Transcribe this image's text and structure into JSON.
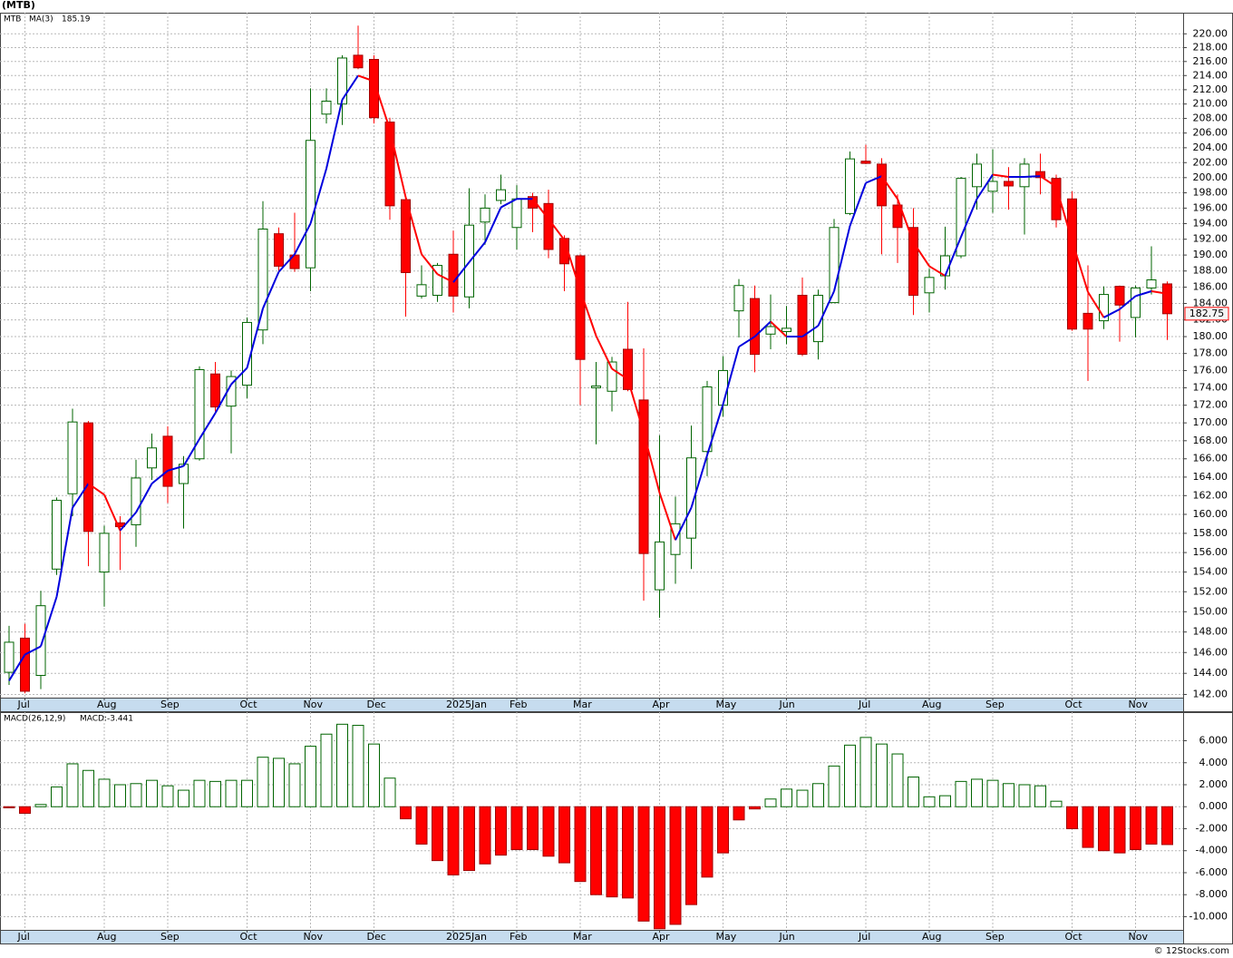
{
  "chart_data": [
    {
      "type": "candlestick",
      "title": "(MTB)",
      "symbol": "MTB",
      "log": true,
      "grid": true,
      "color_up": "#006400",
      "color_down": "#ff0000",
      "categories": [
        null,
        "Jul",
        null,
        null,
        null,
        null,
        "Aug",
        null,
        null,
        null,
        "Sep",
        null,
        null,
        null,
        null,
        "Oct",
        null,
        null,
        null,
        "Nov",
        null,
        null,
        null,
        "Dec",
        null,
        null,
        null,
        null,
        "2025Jan",
        null,
        null,
        null,
        "Feb",
        null,
        null,
        null,
        "Mar",
        null,
        null,
        null,
        null,
        "Apr",
        null,
        null,
        null,
        "May",
        null,
        null,
        null,
        "Jun",
        null,
        null,
        null,
        null,
        "Jul",
        null,
        null,
        null,
        "Aug",
        null,
        null,
        null,
        "Sep",
        null,
        null,
        null,
        null,
        "Oct",
        null,
        null,
        null,
        "Nov",
        null,
        null
      ],
      "open": [
        144.1,
        147.4,
        143.8,
        154.3,
        162.2,
        170.0,
        154.0,
        159.1,
        158.9,
        165.0,
        168.5,
        163.3,
        166.0,
        175.6,
        171.9,
        174.3,
        180.8,
        192.7,
        190.0,
        188.4,
        208.6,
        210.0,
        216.9,
        216.3,
        207.5,
        197.1,
        184.9,
        185.0,
        190.1,
        184.8,
        194.2,
        197.0,
        193.5,
        197.5,
        196.6,
        192.1,
        189.9,
        174.0,
        173.6,
        178.5,
        172.6,
        152.2,
        155.8,
        157.5,
        166.8,
        172.0,
        183.1,
        184.6,
        180.3,
        180.6,
        185.0,
        179.4,
        184.1,
        195.3,
        202.2,
        201.8,
        196.4,
        193.5,
        185.3,
        187.4,
        189.9,
        198.8,
        198.2,
        199.5,
        198.8,
        200.8,
        199.9,
        197.2,
        182.8,
        181.9,
        186.1,
        182.3,
        185.9,
        186.4
      ],
      "high": [
        148.6,
        148.8,
        152.1,
        161.8,
        171.6,
        170.2,
        158.8,
        159.8,
        165.9,
        168.8,
        169.6,
        166.3,
        176.5,
        177.0,
        176.0,
        182.3,
        196.9,
        193.5,
        195.4,
        212.2,
        212.2,
        216.9,
        221.2,
        216.9,
        208.1,
        197.4,
        188.7,
        189.0,
        193.1,
        198.6,
        197.8,
        200.4,
        199.0,
        198.0,
        198.4,
        192.5,
        190.1,
        177.0,
        177.6,
        184.2,
        178.6,
        168.6,
        161.9,
        169.7,
        174.8,
        177.7,
        187.0,
        186.2,
        185.1,
        183.7,
        187.2,
        185.7,
        194.6,
        203.5,
        204.4,
        202.6,
        197.8,
        196.0,
        188.3,
        193.6,
        200.1,
        203.2,
        203.8,
        201.4,
        202.6,
        203.2,
        200.4,
        198.2,
        188.7,
        186.1,
        186.2,
        186.2,
        191.1,
        186.7
      ],
      "low": [
        142.9,
        142.1,
        142.5,
        153.7,
        159.8,
        154.6,
        150.5,
        154.2,
        156.6,
        163.7,
        161.2,
        158.5,
        165.8,
        171.3,
        166.6,
        172.8,
        179.1,
        187.9,
        187.9,
        185.5,
        207.3,
        207.1,
        214.9,
        207.3,
        194.5,
        182.4,
        184.6,
        184.2,
        182.9,
        183.4,
        191.3,
        196.5,
        190.7,
        192.9,
        189.6,
        185.5,
        172.0,
        167.6,
        171.3,
        173.6,
        151.1,
        149.4,
        152.8,
        154.3,
        164.1,
        170.7,
        179.9,
        175.8,
        178.5,
        179.1,
        177.7,
        177.3,
        184.1,
        195.1,
        201.8,
        190.1,
        189.0,
        182.6,
        182.9,
        185.7,
        189.6,
        195.8,
        195.4,
        195.8,
        192.6,
        197.8,
        193.5,
        180.7,
        174.8,
        180.9,
        179.4,
        179.9,
        185.1,
        179.6
      ],
      "close": [
        147.0,
        142.3,
        150.6,
        161.5,
        170.1,
        158.2,
        158.0,
        158.7,
        163.9,
        167.2,
        163.0,
        165.4,
        176.1,
        171.8,
        175.3,
        181.7,
        193.3,
        188.6,
        188.3,
        205.0,
        210.4,
        216.5,
        215.1,
        208.1,
        196.3,
        187.8,
        186.3,
        188.7,
        184.9,
        193.8,
        196.0,
        198.4,
        197.2,
        196.0,
        190.7,
        188.9,
        177.3,
        174.2,
        177.0,
        173.8,
        155.9,
        157.1,
        159.0,
        166.1,
        174.1,
        176.0,
        186.2,
        177.9,
        181.2,
        181.0,
        177.9,
        185.0,
        193.5,
        202.5,
        201.9,
        196.3,
        193.5,
        185.0,
        187.2,
        189.9,
        199.9,
        201.8,
        199.5,
        198.9,
        201.8,
        200.0,
        194.5,
        180.9,
        180.9,
        185.1,
        183.8,
        185.9,
        186.9,
        182.75
      ],
      "ma": {
        "name": "MA(3)",
        "color_up": "#0000dd",
        "color_down": "#ff0000",
        "values": [
          143.3,
          145.8,
          146.6,
          151.5,
          160.7,
          163.3,
          162.1,
          158.3,
          160.2,
          163.3,
          164.7,
          165.2,
          168.2,
          171.1,
          174.4,
          176.3,
          183.4,
          187.9,
          190.1,
          194.0,
          201.2,
          210.6,
          214.0,
          213.2,
          206.5,
          197.4,
          190.1,
          187.6,
          186.6,
          189.1,
          191.6,
          196.1,
          197.2,
          197.2,
          194.6,
          191.9,
          185.6,
          180.1,
          176.2,
          175.0,
          168.9,
          162.3,
          157.3,
          160.7,
          166.4,
          172.1,
          178.8,
          180.0,
          181.8,
          180.0,
          180.0,
          181.3,
          185.5,
          193.7,
          199.3,
          200.2,
          197.2,
          191.6,
          188.6,
          187.4,
          192.3,
          197.2,
          200.4,
          200.1,
          200.1,
          200.2,
          198.8,
          191.8,
          185.4,
          182.3,
          183.3,
          184.9,
          185.5,
          185.19
        ]
      },
      "ylim": [
        141.7,
        223.1
      ],
      "yticks": [
        {
          "value": 142,
          "label": "142.00"
        },
        {
          "value": 144,
          "label": "144.00"
        },
        {
          "value": 146,
          "label": "146.00"
        },
        {
          "value": 148,
          "label": "148.00"
        },
        {
          "value": 150,
          "label": "150.00"
        },
        {
          "value": 152,
          "label": "152.00"
        },
        {
          "value": 154,
          "label": "154.00"
        },
        {
          "value": 156,
          "label": "156.00"
        },
        {
          "value": 158,
          "label": "158.00"
        },
        {
          "value": 160,
          "label": "160.00"
        },
        {
          "value": 162,
          "label": "162.00"
        },
        {
          "value": 164,
          "label": "164.00"
        },
        {
          "value": 166,
          "label": "166.00"
        },
        {
          "value": 168,
          "label": "168.00"
        },
        {
          "value": 170,
          "label": "170.00"
        },
        {
          "value": 172,
          "label": "172.00"
        },
        {
          "value": 174,
          "label": "174.00"
        },
        {
          "value": 176,
          "label": "176.00"
        },
        {
          "value": 178,
          "label": "178.00"
        },
        {
          "value": 180,
          "label": "180.00"
        },
        {
          "value": 182,
          "label": "182.00"
        },
        {
          "value": 184,
          "label": "184.00"
        },
        {
          "value": 186,
          "label": "186.00"
        },
        {
          "value": 188,
          "label": "188.00"
        },
        {
          "value": 190,
          "label": "190.00"
        },
        {
          "value": 192,
          "label": "192.00"
        },
        {
          "value": 194,
          "label": "194.00"
        },
        {
          "value": 196,
          "label": "196.00"
        },
        {
          "value": 198,
          "label": "198.00"
        },
        {
          "value": 200,
          "label": "200.00"
        },
        {
          "value": 202,
          "label": "202.00"
        },
        {
          "value": 204,
          "label": "204.00"
        },
        {
          "value": 206,
          "label": "206.00"
        },
        {
          "value": 208,
          "label": "208.00"
        },
        {
          "value": 210,
          "label": "210.00"
        },
        {
          "value": 212,
          "label": "212.00"
        },
        {
          "value": 214,
          "label": "214.00"
        },
        {
          "value": 216,
          "label": "216.00"
        },
        {
          "value": 218,
          "label": "218.00"
        },
        {
          "value": 220,
          "label": "220.00"
        }
      ]
    },
    {
      "type": "macd",
      "name": "MACD(26,12,9)",
      "value_name": "MACD:",
      "grid": true,
      "color_up": "#006400",
      "color_down": "#ff0000",
      "categories": [
        null,
        "Jul",
        null,
        null,
        null,
        null,
        "Aug",
        null,
        null,
        null,
        "Sep",
        null,
        null,
        null,
        null,
        "Oct",
        null,
        null,
        null,
        "Nov",
        null,
        null,
        null,
        "Dec",
        null,
        null,
        null,
        null,
        "2025Jan",
        null,
        null,
        null,
        "Feb",
        null,
        null,
        null,
        "Mar",
        null,
        null,
        null,
        null,
        "Apr",
        null,
        null,
        null,
        "May",
        null,
        null,
        null,
        "Jun",
        null,
        null,
        null,
        null,
        "Jul",
        null,
        null,
        null,
        "Aug",
        null,
        null,
        null,
        "Sep",
        null,
        null,
        null,
        null,
        "Oct",
        null,
        null,
        null,
        "Nov",
        null,
        null
      ],
      "values": [
        -0.1,
        -0.6,
        0.2,
        1.8,
        3.9,
        3.3,
        2.5,
        2.0,
        2.1,
        2.4,
        1.9,
        1.5,
        2.4,
        2.3,
        2.4,
        2.4,
        4.5,
        4.4,
        3.9,
        5.5,
        6.6,
        7.5,
        7.4,
        5.7,
        2.6,
        -1.1,
        -3.4,
        -4.9,
        -6.2,
        -5.8,
        -5.2,
        -4.4,
        -3.9,
        -3.9,
        -4.5,
        -5.1,
        -6.8,
        -8.0,
        -8.2,
        -8.3,
        -10.4,
        -11.1,
        -10.7,
        -8.9,
        -6.4,
        -4.2,
        -1.2,
        -0.2,
        0.7,
        1.6,
        1.5,
        2.1,
        3.7,
        5.6,
        6.3,
        5.7,
        4.8,
        2.7,
        0.9,
        1.0,
        2.3,
        2.5,
        2.4,
        2.1,
        2.0,
        1.9,
        0.5,
        -2.0,
        -3.7,
        -4.0,
        -4.2,
        -3.9,
        -3.4,
        -3.441
      ],
      "ylim": [
        -11.2,
        8.6
      ],
      "yticks": [
        {
          "value": 6,
          "label": "6.000"
        },
        {
          "value": 4,
          "label": "4.000"
        },
        {
          "value": 2,
          "label": "2.000"
        },
        {
          "value": 0,
          "label": "0.000"
        },
        {
          "value": -2,
          "label": "-2.000"
        },
        {
          "value": -4,
          "label": "-4.000"
        },
        {
          "value": -6,
          "label": "-6.000"
        },
        {
          "value": -8,
          "label": "-8.000"
        },
        {
          "value": -10,
          "label": "-10.000"
        }
      ]
    }
  ],
  "footer": "© 12Stocks.com"
}
